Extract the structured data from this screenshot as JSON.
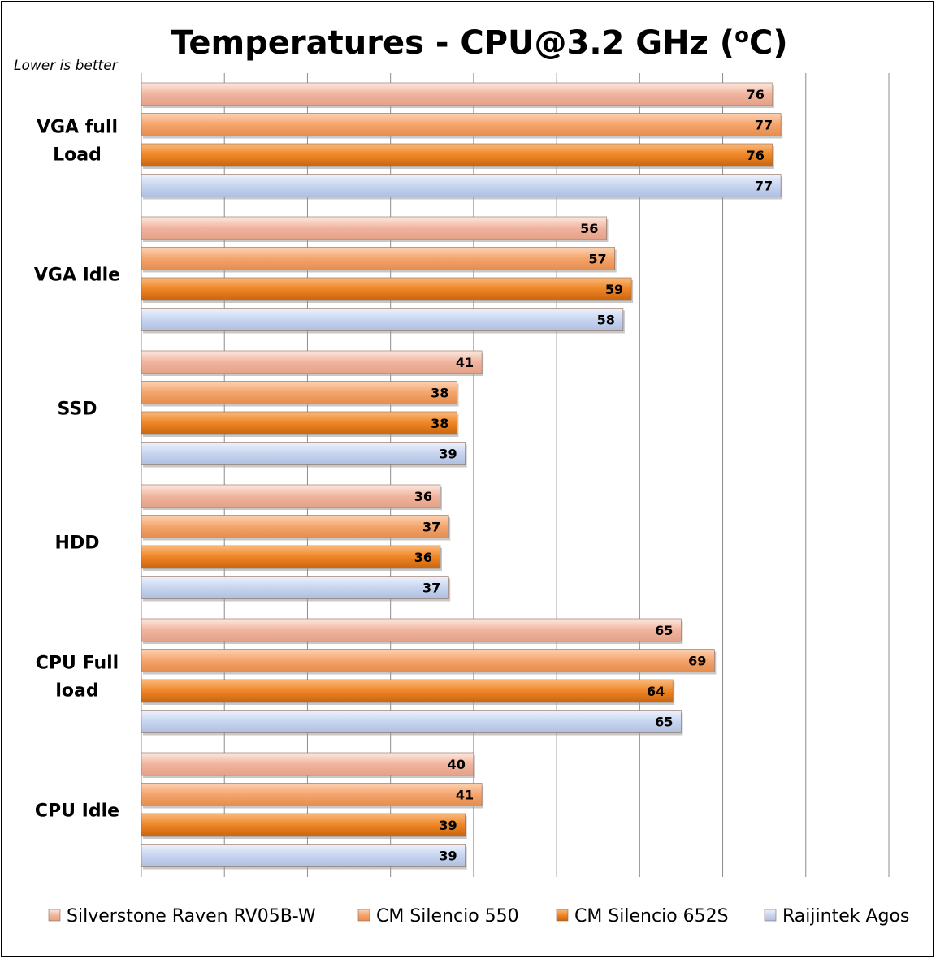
{
  "chart_data": {
    "type": "bar",
    "orientation": "horizontal",
    "title": "Temperatures - CPU@3.2 GHz (",
    "title_sup": "o",
    "title_end": "C)",
    "subtitle": "Lower is better",
    "categories": [
      "VGA full Load",
      "VGA Idle",
      "SSD",
      "HDD",
      "CPU Full load",
      "CPU Idle"
    ],
    "category_lines": [
      [
        "VGA full",
        "Load"
      ],
      [
        "VGA Idle"
      ],
      [
        "SSD"
      ],
      [
        "HDD"
      ],
      [
        "CPU Full",
        "load"
      ],
      [
        "CPU Idle"
      ]
    ],
    "series": [
      {
        "name": "Silverstone Raven RV05B-W",
        "values": [
          76,
          56,
          41,
          36,
          65,
          40
        ],
        "color": "#f2b7a0"
      },
      {
        "name": "CM Silencio 550",
        "values": [
          77,
          57,
          38,
          37,
          69,
          41
        ],
        "color": "#f5a56e"
      },
      {
        "name": "CM Silencio 652S",
        "values": [
          76,
          59,
          38,
          36,
          64,
          39
        ],
        "color": "#f08a2e"
      },
      {
        "name": "Raijintek Agos",
        "values": [
          77,
          58,
          39,
          37,
          65,
          39
        ],
        "color": "#c8d6f0"
      }
    ],
    "xlim": [
      0,
      90
    ],
    "grid": true,
    "legend_position": "bottom"
  }
}
